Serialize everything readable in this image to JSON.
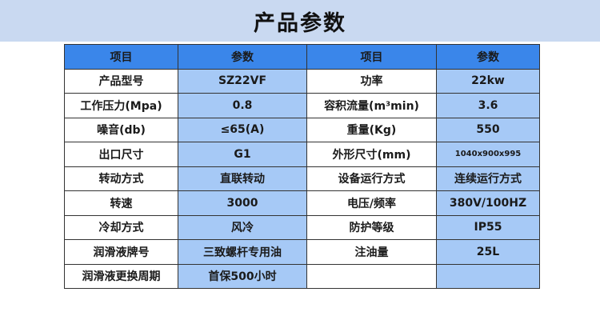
{
  "title": "产品参数",
  "colors": {
    "banner": "#c9d9f1",
    "header": "#3a86ea",
    "value_cell": "#a6c9f6"
  },
  "headers": [
    "项目",
    "参数",
    "项目",
    "参数"
  ],
  "rows": [
    [
      "产品型号",
      "SZ22VF",
      "功率",
      "22kw"
    ],
    [
      "工作压力(Mpa)",
      "0.8",
      "容积流量(m³min)",
      "3.6"
    ],
    [
      "噪音(db)",
      "≤65(A)",
      "重量(Kg)",
      "550"
    ],
    [
      "出口尺寸",
      "G1",
      "外形尺寸(mm)",
      "1040x900x995"
    ],
    [
      "转动方式",
      "直联转动",
      "设备运行方式",
      "连续运行方式"
    ],
    [
      "转速",
      "3000",
      "电压/频率",
      "380V/100HZ"
    ],
    [
      "冷却方式",
      "风冷",
      "防护等级",
      "IP55"
    ],
    [
      "润滑液牌号",
      "三致螺杆专用油",
      "注油量",
      "25L"
    ],
    [
      "润滑液更换周期",
      "首保500小时",
      "",
      ""
    ]
  ]
}
